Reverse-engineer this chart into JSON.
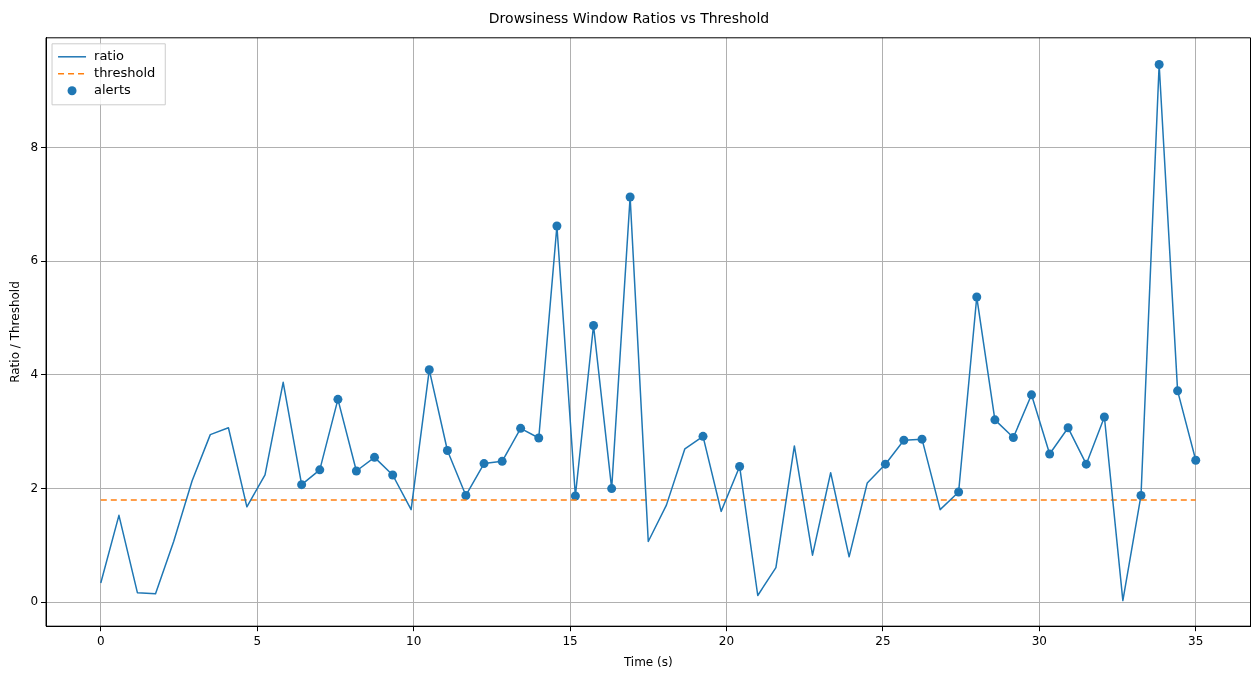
{
  "chart_data": {
    "type": "line",
    "title": "Drowsiness Window Ratios vs Threshold",
    "xlabel": "Time (s)",
    "ylabel": "Ratio / Threshold",
    "xlim": [
      -1.75,
      36.75
    ],
    "ylim": [
      -0.42,
      9.93
    ],
    "xticks": [
      0,
      5,
      10,
      15,
      20,
      25,
      30,
      35
    ],
    "yticks": [
      0,
      2,
      4,
      6,
      8
    ],
    "grid": true,
    "legend": "top left",
    "series": [
      {
        "name": "ratio",
        "type": "line",
        "color": "#1f77b4",
        "marker": "none",
        "line_style": "solid",
        "x": [
          0,
          0.58,
          1.17,
          1.75,
          2.33,
          2.92,
          3.5,
          4.08,
          4.67,
          5.25,
          5.83,
          6.42,
          7,
          7.58,
          8.17,
          8.75,
          9.33,
          9.92,
          10.5,
          11.08,
          11.67,
          12.25,
          12.83,
          13.42,
          14,
          14.58,
          15.17,
          15.75,
          16.33,
          16.92,
          17.5,
          18.08,
          18.67,
          19.25,
          19.83,
          20.42,
          21,
          21.58,
          22.17,
          22.75,
          23.33,
          23.92,
          24.5,
          25.08,
          25.67,
          26.25,
          26.83,
          27.42,
          28,
          28.58,
          29.17,
          29.75,
          30.33,
          30.92,
          31.5,
          32.08,
          32.67,
          33.25,
          33.83,
          34.42,
          35
        ],
        "values": [
          0.34,
          1.53,
          0.17,
          0.15,
          1.07,
          2.14,
          2.95,
          3.07,
          1.68,
          2.24,
          3.87,
          2.07,
          2.33,
          3.57,
          2.31,
          2.55,
          2.24,
          1.63,
          4.09,
          2.67,
          1.88,
          2.44,
          2.48,
          3.06,
          2.89,
          6.62,
          1.87,
          4.87,
          2.0,
          7.13,
          1.07,
          1.71,
          2.7,
          2.92,
          1.6,
          2.39,
          0.12,
          0.61,
          2.75,
          0.83,
          2.28,
          0.8,
          2.1,
          2.43,
          2.85,
          2.87,
          1.63,
          1.94,
          5.37,
          3.21,
          2.9,
          3.65,
          2.61,
          3.07,
          2.43,
          3.26,
          0.03,
          1.88,
          9.46,
          3.72,
          2.5
        ]
      },
      {
        "name": "threshold",
        "type": "line",
        "color": "#ff7f0e",
        "marker": "none",
        "line_style": "dashed",
        "x": [
          0,
          35
        ],
        "values": [
          1.8,
          1.8
        ]
      },
      {
        "name": "alerts",
        "type": "scatter",
        "color": "#1f77b4",
        "marker": "circle",
        "x": [
          6.42,
          7,
          7.58,
          8.17,
          8.75,
          9.33,
          10.5,
          11.08,
          11.67,
          12.25,
          12.83,
          13.42,
          14,
          14.58,
          15.17,
          15.75,
          16.33,
          16.92,
          19.25,
          20.42,
          25.08,
          25.67,
          26.25,
          27.42,
          28,
          28.58,
          29.17,
          29.75,
          30.33,
          30.92,
          31.5,
          32.08,
          33.25,
          33.83,
          34.42,
          35
        ],
        "values": [
          2.07,
          2.33,
          3.57,
          2.31,
          2.55,
          2.24,
          4.09,
          2.67,
          1.88,
          2.44,
          2.48,
          3.06,
          2.89,
          6.62,
          1.87,
          4.87,
          2.0,
          7.13,
          2.92,
          2.39,
          2.43,
          2.85,
          2.87,
          1.94,
          5.37,
          3.21,
          2.9,
          3.65,
          2.61,
          3.07,
          2.43,
          3.26,
          1.88,
          9.46,
          3.72,
          2.5
        ]
      }
    ]
  }
}
